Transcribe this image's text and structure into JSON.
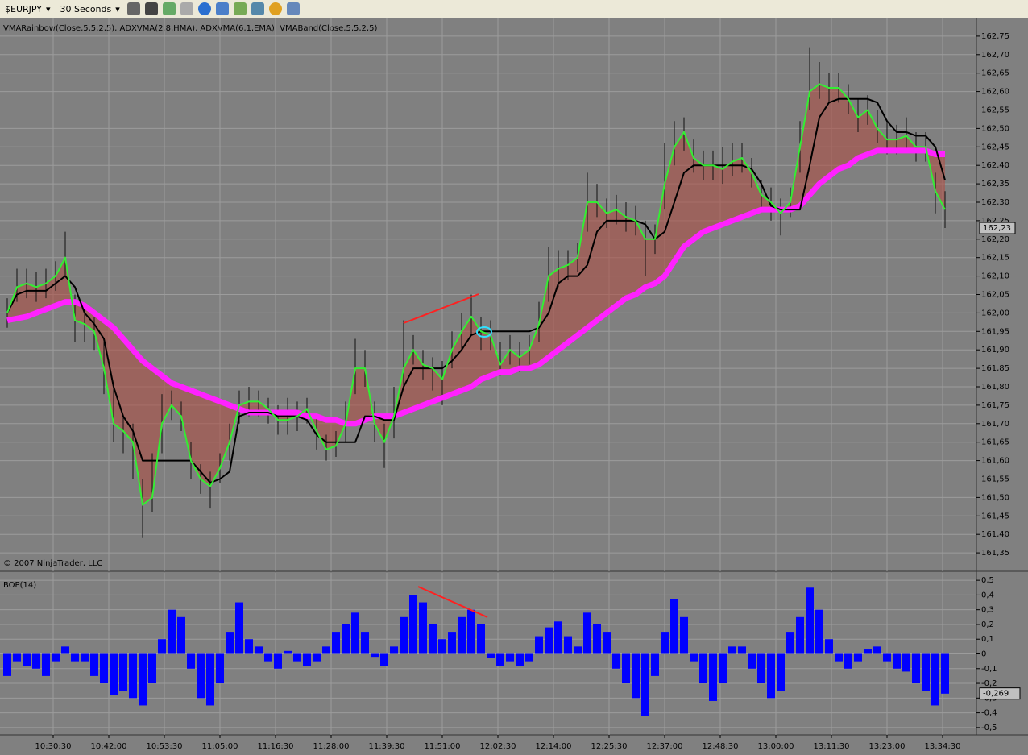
{
  "toolbar": {
    "instrument": "$EURJPY",
    "interval": "30 Seconds"
  },
  "chart_data": [
    {
      "type": "price",
      "title": "VMARainbow(Close,5,5,2,5), ADXVMA(2,8,HMA), ADXVMA(6,1,EMA), VMABand(Close,5,5,2,5)",
      "copyright": "© 2007 NinjaTrader, LLC",
      "x": [
        37260,
        37380,
        37500,
        37620,
        37740,
        37860,
        37980,
        38100,
        38220,
        38340,
        38460,
        38580,
        38700,
        38820,
        38940,
        39060,
        39180,
        39300,
        39420,
        39540,
        39660,
        39780,
        39900,
        40020,
        40140,
        40260,
        40380,
        40500,
        40620,
        40740,
        40860,
        40980,
        41100,
        41220,
        41340,
        41460,
        41580,
        41700,
        41820,
        41940,
        42060,
        42180,
        42300,
        42420,
        42540,
        42660,
        42780,
        42900,
        43020,
        43140,
        43260,
        43380,
        43500,
        43620,
        43740,
        43860,
        43980,
        44100,
        44220,
        44340,
        44460,
        44580,
        44700,
        44820,
        44940,
        45060,
        45180,
        45300,
        45420,
        45540,
        45660,
        45780,
        45900,
        46020,
        46140,
        46260,
        46380,
        46500,
        46620,
        46740,
        46860,
        46980,
        47100,
        47220,
        47340,
        47460,
        47580,
        47700,
        47820,
        47940,
        48060,
        48180,
        48300,
        48420,
        48540,
        48660,
        48780,
        48900
      ],
      "xlim": [
        37170,
        49290
      ],
      "ylim": [
        161.3,
        162.8
      ],
      "yticks": [
        {
          "value": 161.35,
          "label": "161,35"
        },
        {
          "value": 161.4,
          "label": "161,40"
        },
        {
          "value": 161.45,
          "label": "161,45"
        },
        {
          "value": 161.5,
          "label": "161,50"
        },
        {
          "value": 161.55,
          "label": "161,55"
        },
        {
          "value": 161.6,
          "label": "161,60"
        },
        {
          "value": 161.65,
          "label": "161,65"
        },
        {
          "value": 161.7,
          "label": "161,70"
        },
        {
          "value": 161.75,
          "label": "161,75"
        },
        {
          "value": 161.8,
          "label": "161,80"
        },
        {
          "value": 161.85,
          "label": "161,85"
        },
        {
          "value": 161.9,
          "label": "161,90"
        },
        {
          "value": 161.95,
          "label": "161,95"
        },
        {
          "value": 162.0,
          "label": "162,00"
        },
        {
          "value": 162.05,
          "label": "162,05"
        },
        {
          "value": 162.1,
          "label": "162,10"
        },
        {
          "value": 162.15,
          "label": "162,15"
        },
        {
          "value": 162.2,
          "label": "162,20"
        },
        {
          "value": 162.25,
          "label": "162,25"
        },
        {
          "value": 162.3,
          "label": "162,30"
        },
        {
          "value": 162.35,
          "label": "162,35"
        },
        {
          "value": 162.4,
          "label": "162,40"
        },
        {
          "value": 162.45,
          "label": "162,45"
        },
        {
          "value": 162.5,
          "label": "162,50"
        },
        {
          "value": 162.55,
          "label": "162,55"
        },
        {
          "value": 162.6,
          "label": "162,60"
        },
        {
          "value": 162.65,
          "label": "162,65"
        },
        {
          "value": 162.7,
          "label": "162,70"
        },
        {
          "value": 162.75,
          "label": "162,75"
        }
      ],
      "last_price": {
        "value": 162.23,
        "label": "162,23"
      },
      "high": [
        162.04,
        162.12,
        162.12,
        162.11,
        162.12,
        162.14,
        162.22,
        162.05,
        162.01,
        161.99,
        161.92,
        161.8,
        161.72,
        161.7,
        161.55,
        161.62,
        161.78,
        161.79,
        161.76,
        161.65,
        161.59,
        161.57,
        161.62,
        161.7,
        161.79,
        161.8,
        161.79,
        161.77,
        161.75,
        161.77,
        161.76,
        161.77,
        161.72,
        161.67,
        161.68,
        161.76,
        161.93,
        161.9,
        161.76,
        161.7,
        161.8,
        161.98,
        161.94,
        161.9,
        161.88,
        161.87,
        161.95,
        162.0,
        162.05,
        161.99,
        161.98,
        161.92,
        161.94,
        161.92,
        161.94,
        162.03,
        162.18,
        162.17,
        162.17,
        162.19,
        162.38,
        162.35,
        162.31,
        162.32,
        162.3,
        162.29,
        162.25,
        162.24,
        162.46,
        162.52,
        162.53,
        162.47,
        162.44,
        162.44,
        162.45,
        162.46,
        162.46,
        162.42,
        162.36,
        162.34,
        162.31,
        162.34,
        162.52,
        162.72,
        162.68,
        162.65,
        162.65,
        162.62,
        162.58,
        162.59,
        162.55,
        162.52,
        162.51,
        162.53,
        162.49,
        162.49,
        162.38,
        162.33
      ],
      "low": [
        161.96,
        162.03,
        162.04,
        162.03,
        162.04,
        162.06,
        162.1,
        161.92,
        161.92,
        161.9,
        161.78,
        161.65,
        161.62,
        161.55,
        161.39,
        161.46,
        161.62,
        161.71,
        161.68,
        161.55,
        161.51,
        161.47,
        161.54,
        161.6,
        161.7,
        161.72,
        161.72,
        161.7,
        161.67,
        161.67,
        161.68,
        161.7,
        161.63,
        161.6,
        161.61,
        161.65,
        161.78,
        161.8,
        161.65,
        161.58,
        161.66,
        161.8,
        161.86,
        161.82,
        161.79,
        161.75,
        161.85,
        161.9,
        161.94,
        161.9,
        161.9,
        161.83,
        161.86,
        161.84,
        161.86,
        161.92,
        162.03,
        162.07,
        162.09,
        162.11,
        162.22,
        162.26,
        162.23,
        162.24,
        162.22,
        162.21,
        162.1,
        162.16,
        162.28,
        162.4,
        162.44,
        162.38,
        162.36,
        162.36,
        162.35,
        162.37,
        162.38,
        162.34,
        162.28,
        162.25,
        162.21,
        162.26,
        162.38,
        162.55,
        162.58,
        162.57,
        162.57,
        162.54,
        162.49,
        162.51,
        162.46,
        162.43,
        162.43,
        162.44,
        162.41,
        162.41,
        162.27,
        162.23
      ],
      "series": [
        {
          "color": "#33ee33",
          "values": [
            162.0,
            162.07,
            162.08,
            162.07,
            162.08,
            162.1,
            162.15,
            161.98,
            161.97,
            161.95,
            161.85,
            161.7,
            161.68,
            161.65,
            161.48,
            161.5,
            161.7,
            161.75,
            161.72,
            161.6,
            161.55,
            161.53,
            161.58,
            161.65,
            161.75,
            161.76,
            161.76,
            161.74,
            161.71,
            161.71,
            161.72,
            161.74,
            161.68,
            161.63,
            161.64,
            161.7,
            161.85,
            161.85,
            161.7,
            161.65,
            161.72,
            161.85,
            161.9,
            161.86,
            161.85,
            161.82,
            161.9,
            161.95,
            161.99,
            161.95,
            161.94,
            161.86,
            161.9,
            161.88,
            161.9,
            161.97,
            162.1,
            162.12,
            162.13,
            162.15,
            162.3,
            162.3,
            162.27,
            162.28,
            162.26,
            162.25,
            162.2,
            162.2,
            162.35,
            162.45,
            162.49,
            162.42,
            162.4,
            162.4,
            162.39,
            162.41,
            162.42,
            162.38,
            162.32,
            162.3,
            162.27,
            162.3,
            162.45,
            162.6,
            162.62,
            162.61,
            162.61,
            162.58,
            162.53,
            162.55,
            162.5,
            162.47,
            162.47,
            162.48,
            162.45,
            162.45,
            162.33,
            162.28
          ]
        },
        {
          "color": "#000000",
          "values": [
            162.0,
            162.05,
            162.06,
            162.06,
            162.06,
            162.08,
            162.1,
            162.07,
            162.0,
            161.97,
            161.93,
            161.8,
            161.72,
            161.68,
            161.6,
            161.6,
            161.6,
            161.6,
            161.6,
            161.6,
            161.57,
            161.54,
            161.55,
            161.57,
            161.72,
            161.73,
            161.73,
            161.73,
            161.72,
            161.72,
            161.72,
            161.71,
            161.67,
            161.65,
            161.65,
            161.65,
            161.65,
            161.72,
            161.72,
            161.71,
            161.71,
            161.8,
            161.85,
            161.85,
            161.85,
            161.85,
            161.87,
            161.9,
            161.94,
            161.95,
            161.95,
            161.95,
            161.95,
            161.95,
            161.95,
            161.96,
            162.0,
            162.08,
            162.1,
            162.1,
            162.13,
            162.22,
            162.25,
            162.25,
            162.25,
            162.25,
            162.24,
            162.2,
            162.22,
            162.3,
            162.38,
            162.4,
            162.4,
            162.4,
            162.4,
            162.4,
            162.4,
            162.39,
            162.35,
            162.29,
            162.28,
            162.28,
            162.28,
            162.4,
            162.53,
            162.57,
            162.58,
            162.58,
            162.58,
            162.58,
            162.57,
            162.52,
            162.49,
            162.49,
            162.48,
            162.48,
            162.45,
            162.36
          ]
        },
        {
          "color": "#ff22ff",
          "values": [
            161.98,
            161.985,
            161.99,
            162.0,
            162.01,
            162.02,
            162.03,
            162.03,
            162.02,
            162.0,
            161.98,
            161.96,
            161.93,
            161.9,
            161.87,
            161.85,
            161.83,
            161.81,
            161.8,
            161.79,
            161.78,
            161.77,
            161.76,
            161.75,
            161.74,
            161.73,
            161.73,
            161.73,
            161.73,
            161.73,
            161.73,
            161.72,
            161.72,
            161.71,
            161.71,
            161.7,
            161.7,
            161.71,
            161.72,
            161.72,
            161.72,
            161.73,
            161.74,
            161.75,
            161.76,
            161.77,
            161.78,
            161.79,
            161.8,
            161.82,
            161.83,
            161.84,
            161.84,
            161.85,
            161.85,
            161.86,
            161.88,
            161.9,
            161.92,
            161.94,
            161.96,
            161.98,
            162.0,
            162.02,
            162.04,
            162.05,
            162.07,
            162.08,
            162.1,
            162.14,
            162.18,
            162.2,
            162.22,
            162.23,
            162.24,
            162.25,
            162.26,
            162.27,
            162.28,
            162.28,
            162.28,
            162.28,
            162.29,
            162.32,
            162.35,
            162.37,
            162.39,
            162.4,
            162.42,
            162.43,
            162.44,
            162.44,
            162.44,
            162.44,
            162.44,
            162.44,
            162.43,
            162.43
          ]
        }
      ]
    },
    {
      "type": "bar",
      "title": "BOP(14)",
      "color": "#0000ff",
      "x": [
        37260,
        37380,
        37500,
        37620,
        37740,
        37860,
        37980,
        38100,
        38220,
        38340,
        38460,
        38580,
        38700,
        38820,
        38940,
        39060,
        39180,
        39300,
        39420,
        39540,
        39660,
        39780,
        39900,
        40020,
        40140,
        40260,
        40380,
        40500,
        40620,
        40740,
        40860,
        40980,
        41100,
        41220,
        41340,
        41460,
        41580,
        41700,
        41820,
        41940,
        42060,
        42180,
        42300,
        42420,
        42540,
        42660,
        42780,
        42900,
        43020,
        43140,
        43260,
        43380,
        43500,
        43620,
        43740,
        43860,
        43980,
        44100,
        44220,
        44340,
        44460,
        44580,
        44700,
        44820,
        44940,
        45060,
        45180,
        45300,
        45420,
        45540,
        45660,
        45780,
        45900,
        46020,
        46140,
        46260,
        46380,
        46500,
        46620,
        46740,
        46860,
        46980,
        47100,
        47220,
        47340,
        47460,
        47580,
        47700,
        47820,
        47940,
        48060,
        48180,
        48300,
        48420,
        48540,
        48660,
        48780,
        48900
      ],
      "values": [
        -0.15,
        -0.05,
        -0.08,
        -0.1,
        -0.15,
        -0.05,
        0.05,
        -0.05,
        -0.05,
        -0.15,
        -0.2,
        -0.28,
        -0.25,
        -0.3,
        -0.35,
        -0.2,
        0.1,
        0.3,
        0.25,
        -0.1,
        -0.3,
        -0.35,
        -0.2,
        0.15,
        0.35,
        0.1,
        0.05,
        -0.05,
        -0.1,
        0.02,
        -0.05,
        -0.08,
        -0.05,
        0.05,
        0.15,
        0.2,
        0.28,
        0.15,
        -0.02,
        -0.08,
        0.05,
        0.25,
        0.4,
        0.35,
        0.2,
        0.1,
        0.15,
        0.25,
        0.3,
        0.2,
        -0.03,
        -0.08,
        -0.05,
        -0.08,
        -0.05,
        0.12,
        0.18,
        0.22,
        0.12,
        0.05,
        0.28,
        0.2,
        0.15,
        -0.1,
        -0.2,
        -0.3,
        -0.42,
        -0.15,
        0.15,
        0.37,
        0.25,
        -0.05,
        -0.2,
        -0.32,
        -0.2,
        0.05,
        0.05,
        -0.1,
        -0.2,
        -0.3,
        -0.25,
        0.15,
        0.25,
        0.45,
        0.3,
        0.1,
        -0.05,
        -0.1,
        -0.05,
        0.03,
        0.05,
        -0.05,
        -0.1,
        -0.12,
        -0.2,
        -0.25,
        -0.35,
        -0.27
      ],
      "xlim": [
        37170,
        49290
      ],
      "ylim": [
        -0.55,
        0.55
      ],
      "yticks": [
        {
          "value": -0.5,
          "label": "-0,5"
        },
        {
          "value": -0.4,
          "label": "-0,4"
        },
        {
          "value": -0.3,
          "label": "-0,3"
        },
        {
          "value": -0.2,
          "label": "-0,2"
        },
        {
          "value": -0.1,
          "label": "-0,1"
        },
        0,
        {
          "value": 0.1,
          "label": "0,1"
        },
        {
          "value": 0.2,
          "label": "0,2"
        },
        {
          "value": 0.3,
          "label": "0,3"
        },
        {
          "value": 0.4,
          "label": "0,4"
        },
        {
          "value": 0.5,
          "label": "0,5"
        }
      ],
      "last_value": {
        "value": -0.269,
        "label": "-0,269"
      },
      "xticks": [
        {
          "value": 37830,
          "label": "10:30:30"
        },
        {
          "value": 38520,
          "label": "10:42:00"
        },
        {
          "value": 39210,
          "label": "10:53:30"
        },
        {
          "value": 39900,
          "label": "11:05:00"
        },
        {
          "value": 40590,
          "label": "11:16:30"
        },
        {
          "value": 41280,
          "label": "11:28:00"
        },
        {
          "value": 41970,
          "label": "11:39:30"
        },
        {
          "value": 42660,
          "label": "11:51:00"
        },
        {
          "value": 43350,
          "label": "12:02:30"
        },
        {
          "value": 44040,
          "label": "12:14:00"
        },
        {
          "value": 44730,
          "label": "12:25:30"
        },
        {
          "value": 45420,
          "label": "12:37:00"
        },
        {
          "value": 46110,
          "label": "12:48:30"
        },
        {
          "value": 46800,
          "label": "13:00:00"
        },
        {
          "value": 47490,
          "label": "13:11:30"
        },
        {
          "value": 48180,
          "label": "13:23:00"
        },
        {
          "value": 48870,
          "label": "13:34:30"
        }
      ]
    }
  ]
}
